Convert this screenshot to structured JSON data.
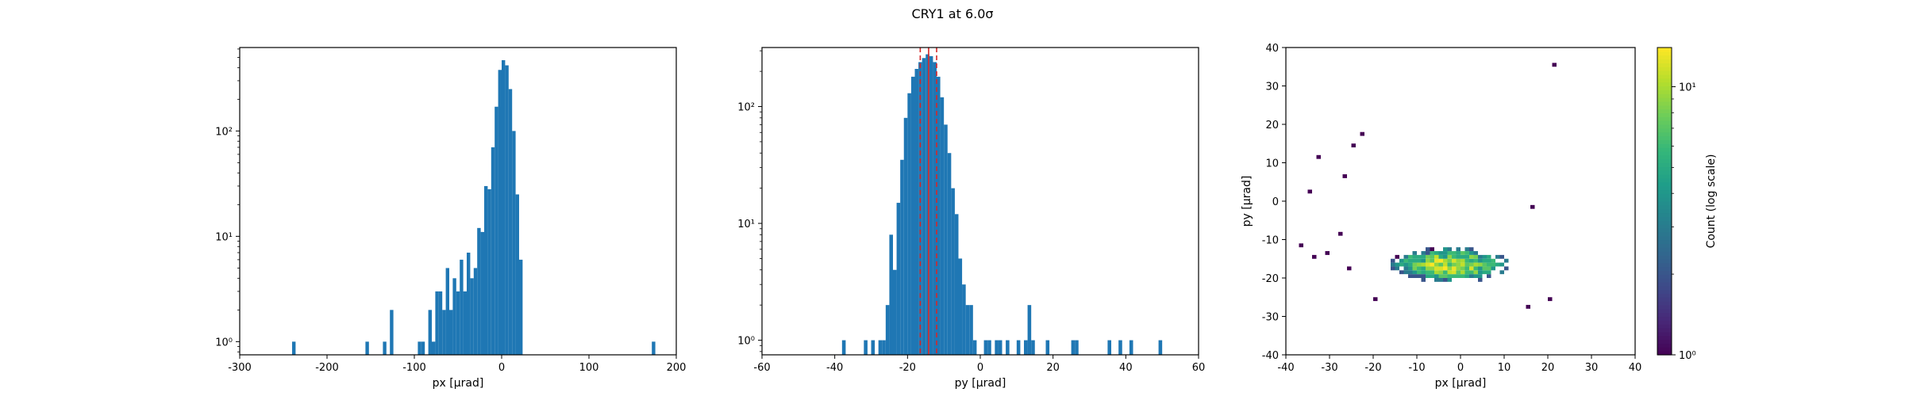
{
  "figure": {
    "suptitle": "CRY1 at 6.0σ"
  },
  "colors": {
    "bar": "#1f77b4",
    "axis": "#000000",
    "vline": "#d62728"
  },
  "chart_data": [
    {
      "type": "bar",
      "title": "",
      "xlabel": "px [μrad]",
      "ylabel": "",
      "yscale": "log",
      "xlim": [
        -300,
        200
      ],
      "ylim": [
        0.75,
        620
      ],
      "xticks": [
        "-300",
        "-200",
        "-100",
        "0",
        "100",
        "200"
      ],
      "yticks": [
        "10⁰",
        "10¹",
        "10²"
      ],
      "bin_width": 4,
      "bins": [
        {
          "x": -240,
          "v": 1
        },
        {
          "x": -156,
          "v": 1
        },
        {
          "x": -136,
          "v": 1
        },
        {
          "x": -128,
          "v": 2
        },
        {
          "x": -96,
          "v": 1
        },
        {
          "x": -92,
          "v": 1
        },
        {
          "x": -84,
          "v": 2
        },
        {
          "x": -80,
          "v": 1
        },
        {
          "x": -76,
          "v": 3
        },
        {
          "x": -72,
          "v": 3
        },
        {
          "x": -68,
          "v": 2
        },
        {
          "x": -64,
          "v": 5
        },
        {
          "x": -60,
          "v": 2
        },
        {
          "x": -56,
          "v": 4
        },
        {
          "x": -52,
          "v": 3
        },
        {
          "x": -48,
          "v": 6
        },
        {
          "x": -44,
          "v": 3
        },
        {
          "x": -40,
          "v": 7
        },
        {
          "x": -36,
          "v": 4
        },
        {
          "x": -32,
          "v": 5
        },
        {
          "x": -28,
          "v": 12
        },
        {
          "x": -24,
          "v": 11
        },
        {
          "x": -20,
          "v": 30
        },
        {
          "x": -16,
          "v": 28
        },
        {
          "x": -12,
          "v": 70
        },
        {
          "x": -8,
          "v": 170
        },
        {
          "x": -4,
          "v": 380
        },
        {
          "x": 0,
          "v": 470
        },
        {
          "x": 4,
          "v": 420
        },
        {
          "x": 8,
          "v": 250
        },
        {
          "x": 12,
          "v": 100
        },
        {
          "x": 16,
          "v": 25
        },
        {
          "x": 20,
          "v": 6
        },
        {
          "x": 172,
          "v": 1
        }
      ]
    },
    {
      "type": "bar",
      "title": "",
      "xlabel": "py [μrad]",
      "ylabel": "",
      "yscale": "log",
      "xlim": [
        -60,
        60
      ],
      "ylim": [
        0.75,
        320
      ],
      "xticks": [
        "-60",
        "-40",
        "-20",
        "0",
        "20",
        "40",
        "60"
      ],
      "yticks": [
        "10⁰",
        "10¹",
        "10²"
      ],
      "bin_width": 1,
      "vlines": [
        {
          "x": -16.5,
          "style": "dashed"
        },
        {
          "x": -14.2,
          "style": "solid"
        },
        {
          "x": -12,
          "style": "dashed"
        }
      ],
      "bins": [
        {
          "x": -38,
          "v": 1
        },
        {
          "x": -32,
          "v": 1
        },
        {
          "x": -30,
          "v": 1
        },
        {
          "x": -28,
          "v": 1
        },
        {
          "x": -27,
          "v": 1
        },
        {
          "x": -26,
          "v": 2
        },
        {
          "x": -25,
          "v": 8
        },
        {
          "x": -24,
          "v": 4
        },
        {
          "x": -23,
          "v": 15
        },
        {
          "x": -22,
          "v": 35
        },
        {
          "x": -21,
          "v": 80
        },
        {
          "x": -20,
          "v": 130
        },
        {
          "x": -19,
          "v": 180
        },
        {
          "x": -18,
          "v": 210
        },
        {
          "x": -17,
          "v": 240
        },
        {
          "x": -16,
          "v": 260
        },
        {
          "x": -15,
          "v": 280
        },
        {
          "x": -14,
          "v": 270
        },
        {
          "x": -13,
          "v": 240
        },
        {
          "x": -12,
          "v": 180
        },
        {
          "x": -11,
          "v": 120
        },
        {
          "x": -10,
          "v": 70
        },
        {
          "x": -9,
          "v": 40
        },
        {
          "x": -8,
          "v": 20
        },
        {
          "x": -7,
          "v": 12
        },
        {
          "x": -6,
          "v": 5
        },
        {
          "x": -5,
          "v": 3
        },
        {
          "x": -4,
          "v": 2
        },
        {
          "x": -3,
          "v": 2
        },
        {
          "x": -2,
          "v": 1
        },
        {
          "x": 1,
          "v": 1
        },
        {
          "x": 2,
          "v": 1
        },
        {
          "x": 4,
          "v": 1
        },
        {
          "x": 5,
          "v": 1
        },
        {
          "x": 7,
          "v": 1
        },
        {
          "x": 10,
          "v": 1
        },
        {
          "x": 12,
          "v": 1
        },
        {
          "x": 13,
          "v": 2
        },
        {
          "x": 14,
          "v": 1
        },
        {
          "x": 18,
          "v": 1
        },
        {
          "x": 25,
          "v": 1
        },
        {
          "x": 26,
          "v": 1
        },
        {
          "x": 35,
          "v": 1
        },
        {
          "x": 38,
          "v": 1
        },
        {
          "x": 41,
          "v": 1
        },
        {
          "x": 49,
          "v": 1
        }
      ]
    },
    {
      "type": "heatmap",
      "title": "",
      "xlabel": "px [μrad]",
      "ylabel": "py [μrad]",
      "xlim": [
        -40,
        40
      ],
      "ylim": [
        -40,
        40
      ],
      "xticks": [
        "-40",
        "-30",
        "-20",
        "-10",
        "0",
        "10",
        "20",
        "30",
        "40"
      ],
      "yticks": [
        "-40",
        "-30",
        "-20",
        "-10",
        "0",
        "10",
        "20",
        "30",
        "40"
      ],
      "bin_size": 1,
      "colorbar": {
        "label": "Count (log scale)",
        "scale": "log",
        "range": [
          1,
          14
        ],
        "ticks": [
          "10⁰",
          "10¹"
        ]
      },
      "outliers": [
        {
          "x": 21,
          "y": 35,
          "c": 1
        },
        {
          "x": -23,
          "y": 17,
          "c": 1
        },
        {
          "x": -25,
          "y": 14,
          "c": 1
        },
        {
          "x": -33,
          "y": 11,
          "c": 1
        },
        {
          "x": -35,
          "y": 2,
          "c": 1
        },
        {
          "x": -27,
          "y": 6,
          "c": 1
        },
        {
          "x": 16,
          "y": -2,
          "c": 1
        },
        {
          "x": -20,
          "y": -26,
          "c": 1
        },
        {
          "x": 15,
          "y": -28,
          "c": 1
        },
        {
          "x": -37,
          "y": -12,
          "c": 1
        },
        {
          "x": -34,
          "y": -15,
          "c": 1
        },
        {
          "x": -31,
          "y": -14,
          "c": 1
        },
        {
          "x": -28,
          "y": -9,
          "c": 1
        },
        {
          "x": -26,
          "y": -18,
          "c": 1
        },
        {
          "x": 20,
          "y": -26,
          "c": 1
        }
      ],
      "cluster": {
        "center": [
          -3,
          -17
        ],
        "spread": [
          12,
          4
        ],
        "peak": 14
      }
    }
  ]
}
